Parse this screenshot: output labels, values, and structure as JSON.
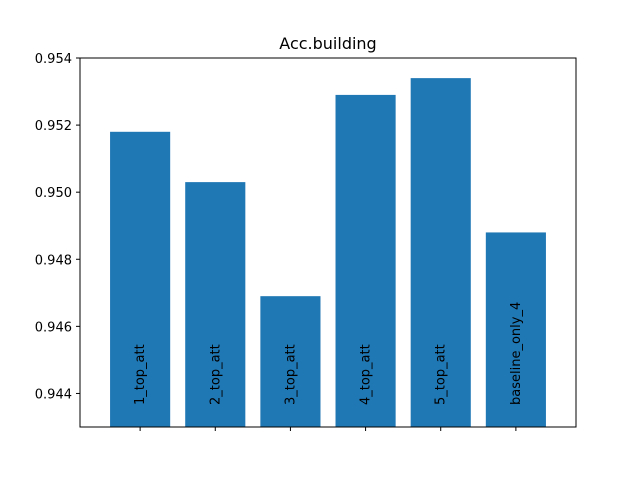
{
  "chart_data": {
    "type": "bar",
    "title": "Acc.building",
    "xlabel": "",
    "ylabel": "",
    "categories": [
      "1_top_att",
      "2_top_att",
      "3_top_att",
      "4_top_att",
      "5_top_att",
      "baseline_only_4"
    ],
    "values": [
      0.9518,
      0.9503,
      0.9469,
      0.9529,
      0.9534,
      0.9488
    ],
    "ylim": [
      0.943,
      0.954
    ],
    "yticks": [
      0.944,
      0.946,
      0.948,
      0.95,
      0.952,
      0.954
    ],
    "ytick_labels": [
      "0.944",
      "0.946",
      "0.948",
      "0.950",
      "0.952",
      "0.954"
    ],
    "bar_labels_inside": true,
    "x_tick_labels_shown": false,
    "grid": false,
    "bar_color": "#1f77b4"
  }
}
